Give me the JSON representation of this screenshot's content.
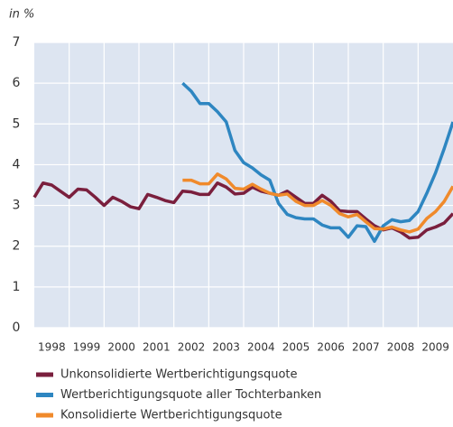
{
  "chart_data": {
    "type": "line",
    "y_axis_label": "in %",
    "xlim": [
      1998,
      2010
    ],
    "xticks": [
      {
        "value": 1998,
        "label": "1998"
      },
      {
        "value": 1999,
        "label": "1999"
      },
      {
        "value": 2000,
        "label": "2000"
      },
      {
        "value": 2001,
        "label": "2001"
      },
      {
        "value": 2002,
        "label": "2002"
      },
      {
        "value": 2003,
        "label": "2003"
      },
      {
        "value": 2004,
        "label": "2004"
      },
      {
        "value": 2005,
        "label": "2005"
      },
      {
        "value": 2006,
        "label": "2006"
      },
      {
        "value": 2007,
        "label": "2007"
      },
      {
        "value": 2008,
        "label": "2008"
      },
      {
        "value": 2009,
        "label": "2009"
      }
    ],
    "ylim": [
      0,
      7
    ],
    "yticks": [
      0,
      1,
      2,
      3,
      4,
      5,
      6,
      7
    ],
    "grid": true,
    "series": [
      {
        "name": "Unkonsolidierte Wertberichtigungsquote",
        "color": "#7a1f3d",
        "x": [
          1998,
          1998.25,
          1998.5,
          1998.75,
          1999,
          1999.25,
          1999.5,
          1999.75,
          2000,
          2000.25,
          2000.5,
          2000.75,
          2001,
          2001.25,
          2001.5,
          2001.75,
          2002,
          2002.25,
          2002.5,
          2002.75,
          2003,
          2003.25,
          2003.5,
          2003.75,
          2004,
          2004.25,
          2004.5,
          2004.75,
          2005,
          2005.25,
          2005.5,
          2005.75,
          2006,
          2006.25,
          2006.5,
          2006.75,
          2007,
          2007.25,
          2007.5,
          2007.75,
          2008,
          2008.25,
          2008.5,
          2008.75,
          2009,
          2009.25,
          2009.5,
          2009.75,
          2010
        ],
        "values": [
          3.2,
          3.55,
          3.5,
          3.35,
          3.2,
          3.4,
          3.38,
          3.2,
          3.0,
          3.2,
          3.1,
          2.97,
          2.92,
          3.27,
          3.2,
          3.12,
          3.07,
          3.35,
          3.33,
          3.27,
          3.27,
          3.55,
          3.45,
          3.28,
          3.3,
          3.45,
          3.35,
          3.3,
          3.25,
          3.35,
          3.2,
          3.05,
          3.05,
          3.25,
          3.1,
          2.87,
          2.85,
          2.85,
          2.67,
          2.5,
          2.4,
          2.45,
          2.35,
          2.2,
          2.22,
          2.4,
          2.47,
          2.57,
          2.8
        ]
      },
      {
        "name": "Wertberichtigungsquote aller Tochterbanken",
        "color": "#2e86c1",
        "x": [
          2002.25,
          2002.5,
          2002.75,
          2003,
          2003.25,
          2003.5,
          2003.75,
          2004,
          2004.25,
          2004.5,
          2004.75,
          2005,
          2005.25,
          2005.5,
          2005.75,
          2006,
          2006.25,
          2006.5,
          2006.75,
          2007,
          2007.25,
          2007.5,
          2007.75,
          2008,
          2008.25,
          2008.5,
          2008.75,
          2009,
          2009.25,
          2009.5,
          2009.75,
          2010
        ],
        "values": [
          6.0,
          5.8,
          5.5,
          5.5,
          5.3,
          5.05,
          4.35,
          4.05,
          3.92,
          3.75,
          3.62,
          3.05,
          2.78,
          2.7,
          2.67,
          2.67,
          2.52,
          2.45,
          2.45,
          2.22,
          2.5,
          2.48,
          2.12,
          2.5,
          2.65,
          2.6,
          2.63,
          2.85,
          3.3,
          3.8,
          4.4,
          5.05
        ]
      },
      {
        "name": "Konsolidierte Wertberichtigungsquote",
        "color": "#f08a2b",
        "x": [
          2002.25,
          2002.5,
          2002.75,
          2003,
          2003.25,
          2003.5,
          2003.75,
          2004,
          2004.25,
          2004.5,
          2004.75,
          2005,
          2005.25,
          2005.5,
          2005.75,
          2006,
          2006.25,
          2006.5,
          2006.75,
          2007,
          2007.25,
          2007.5,
          2007.75,
          2008,
          2008.25,
          2008.5,
          2008.75,
          2009,
          2009.25,
          2009.5,
          2009.75,
          2010
        ],
        "values": [
          3.62,
          3.62,
          3.53,
          3.53,
          3.77,
          3.65,
          3.42,
          3.4,
          3.52,
          3.4,
          3.3,
          3.25,
          3.28,
          3.1,
          3.0,
          3.0,
          3.12,
          3.0,
          2.8,
          2.72,
          2.78,
          2.6,
          2.43,
          2.42,
          2.47,
          2.4,
          2.35,
          2.42,
          2.68,
          2.85,
          3.1,
          3.47
        ]
      }
    ]
  }
}
